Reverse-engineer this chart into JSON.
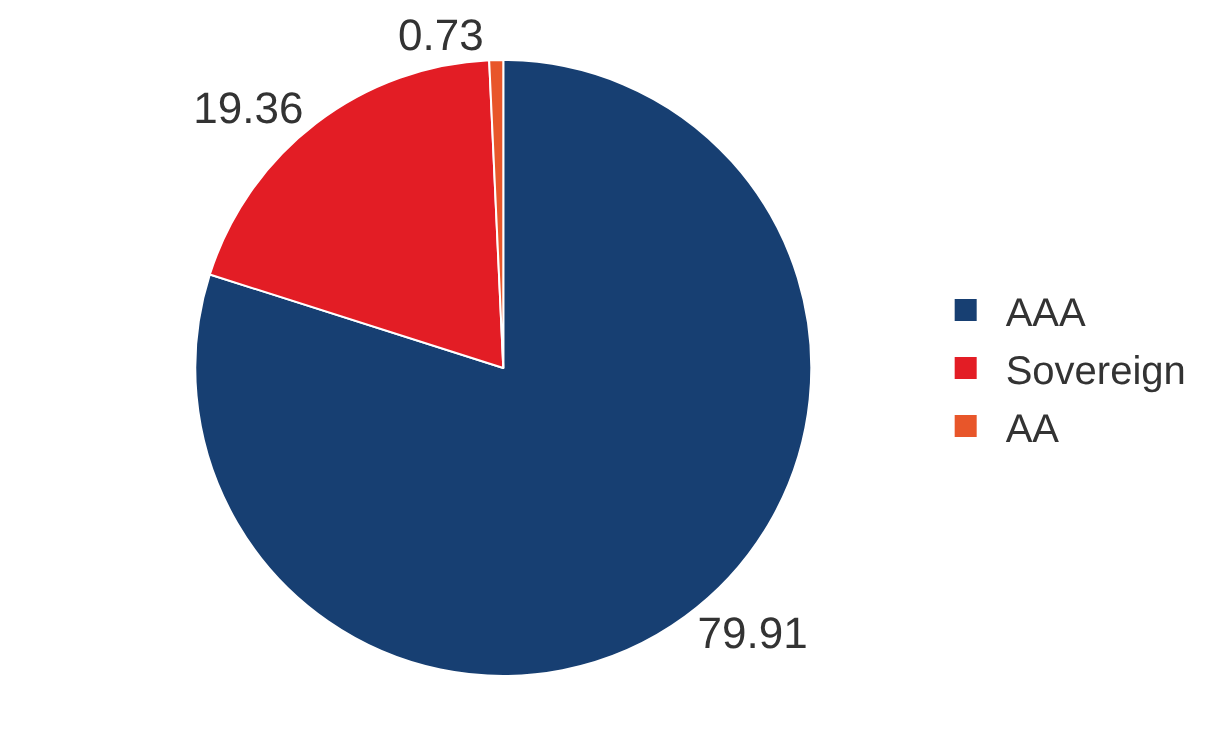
{
  "chart_data": {
    "type": "pie",
    "categories": [
      "AAA",
      "Sovereign",
      "AA"
    ],
    "values": [
      79.91,
      19.36,
      0.73
    ],
    "colors": [
      "#173f72",
      "#e31d25",
      "#e8562a"
    ],
    "data_labels": true,
    "legend": "right"
  }
}
